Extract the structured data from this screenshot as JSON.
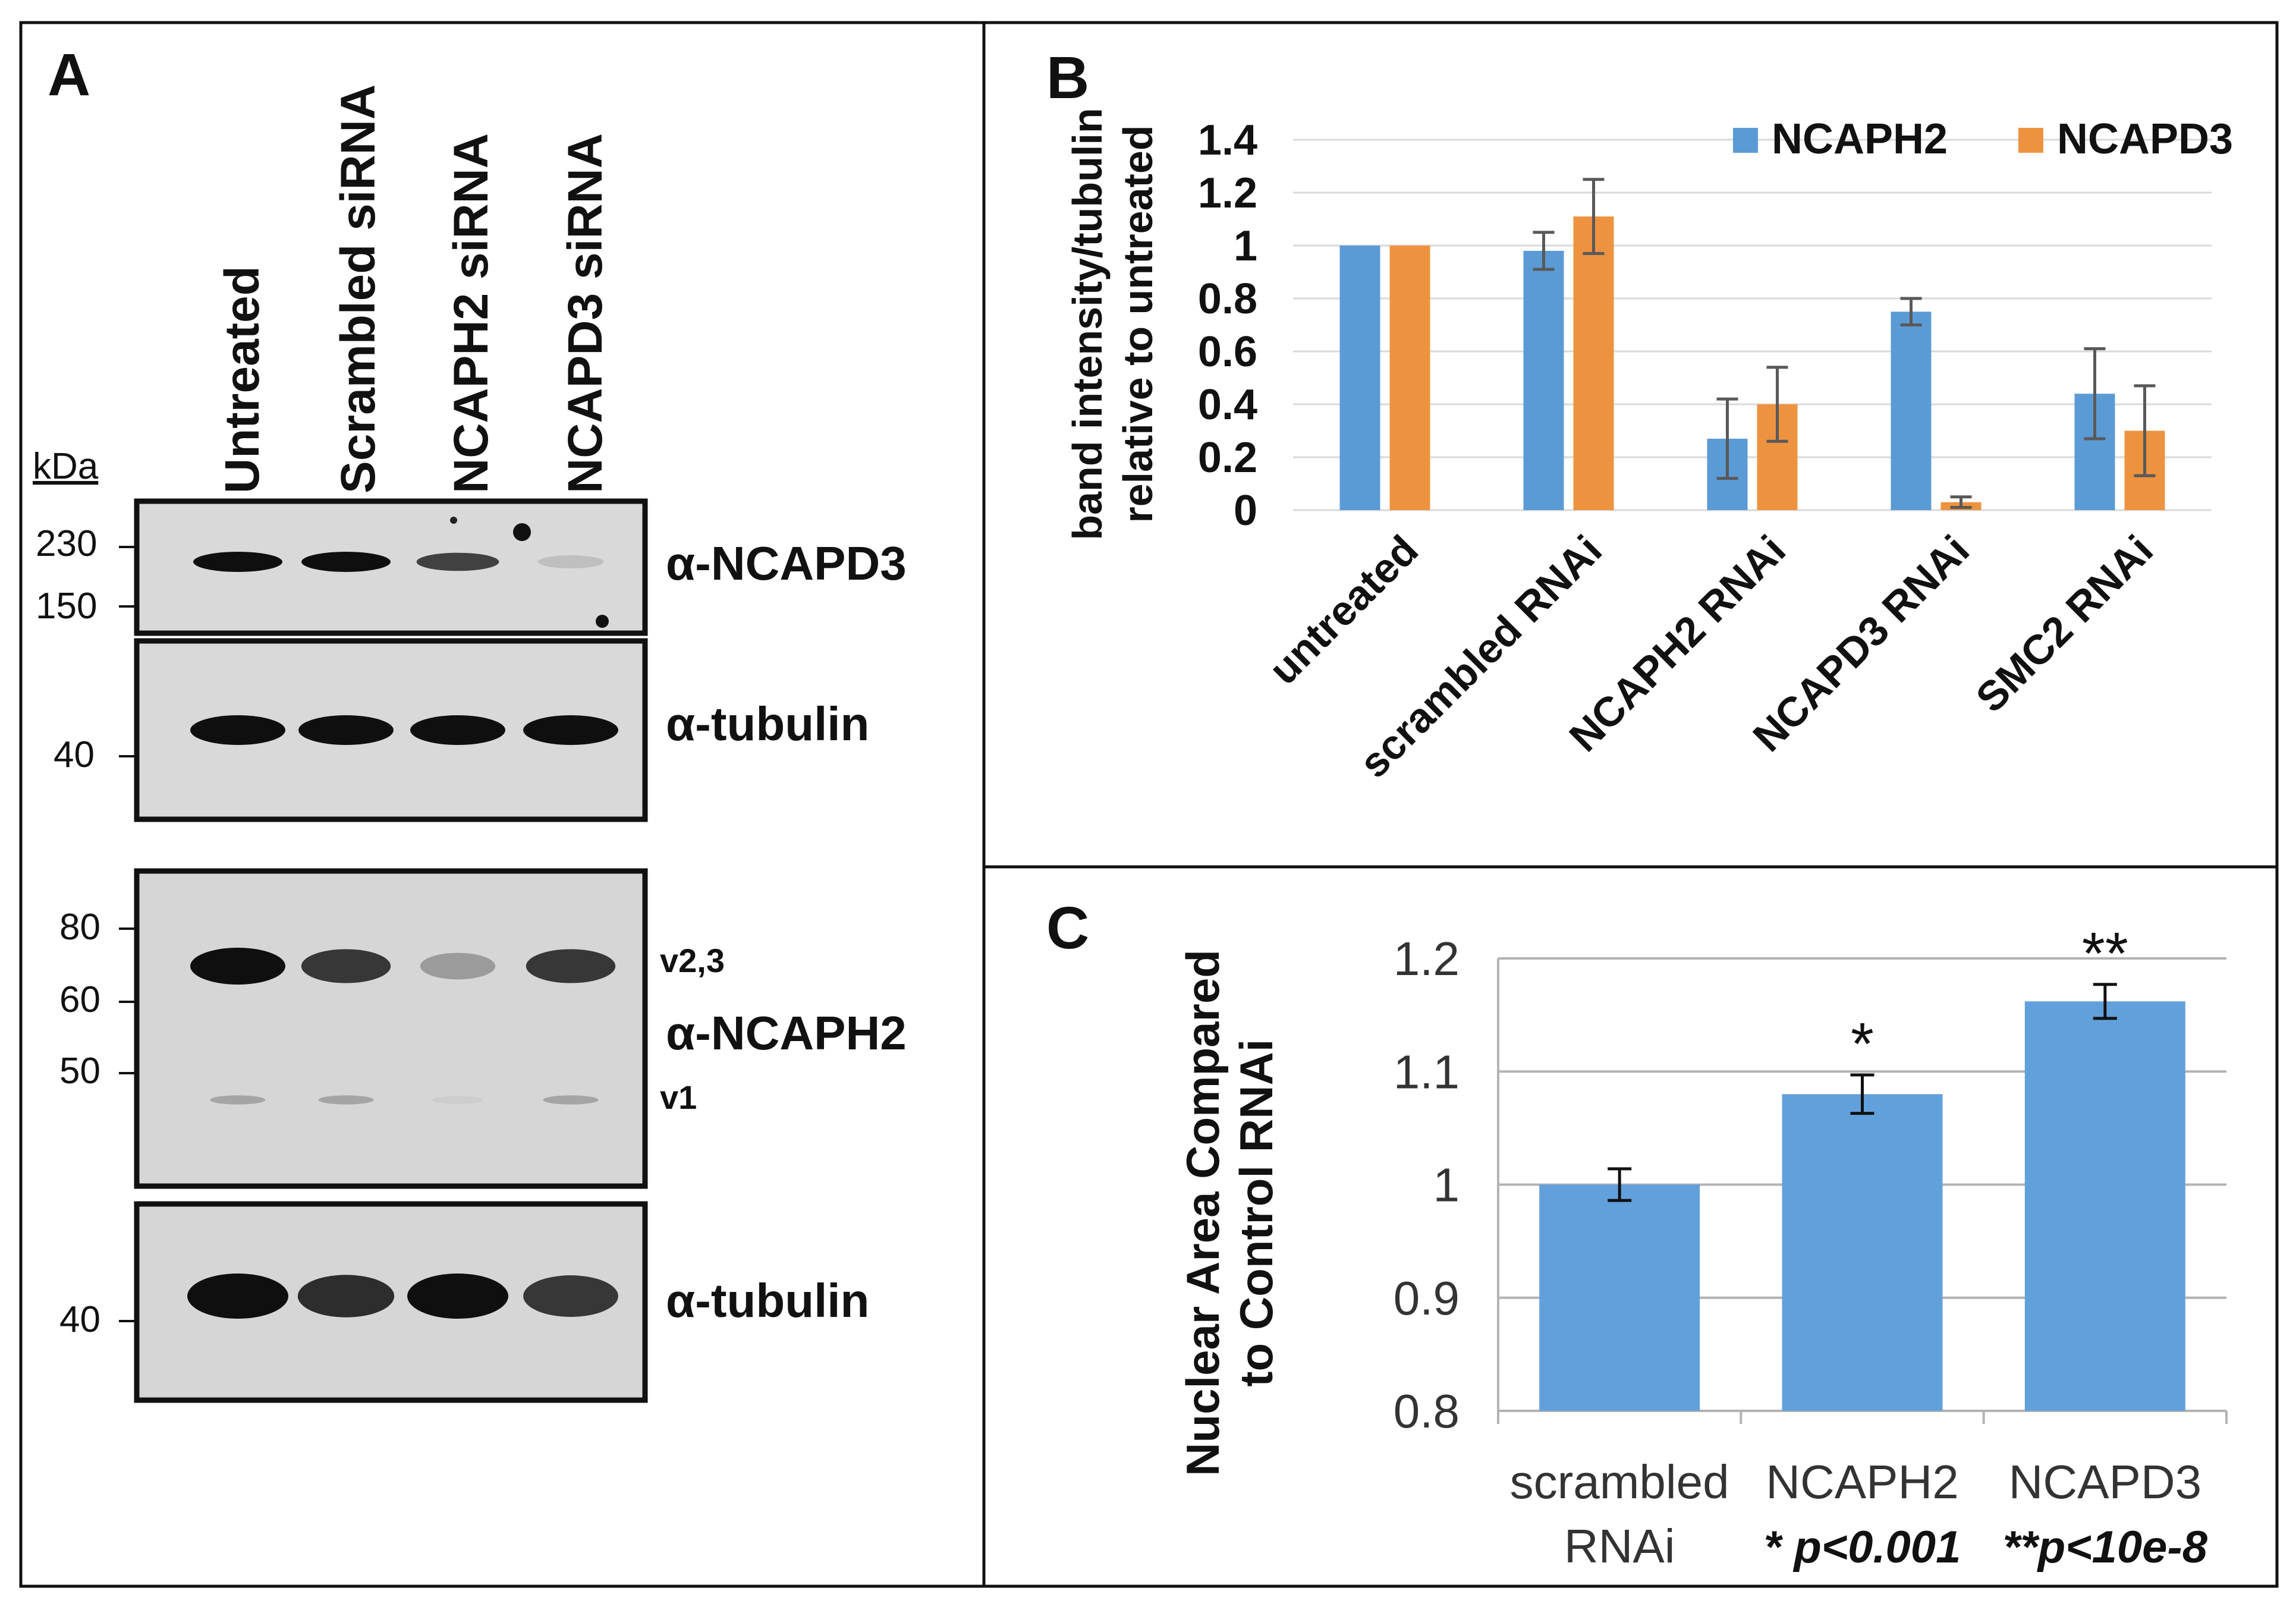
{
  "panels": {
    "a": {
      "label": "A",
      "lanes": [
        "Untreated",
        "Scrambled siRNA",
        "NCAPH2 siRNA",
        "NCAPD3 siRNA"
      ],
      "kda_label": "kDa",
      "blots": [
        {
          "antibody": "α-NCAPD3",
          "markers": [
            "230",
            "150"
          ],
          "band_intensity": [
            1.0,
            1.0,
            0.75,
            0.12
          ]
        },
        {
          "antibody": "α-tubulin",
          "markers": [
            "40"
          ],
          "band_intensity": [
            1.0,
            1.0,
            1.0,
            1.0
          ]
        },
        {
          "antibody": "α-NCAPH2",
          "markers": [
            "80",
            "60",
            "50"
          ],
          "variant_labels": [
            "v2,3",
            "v1"
          ],
          "band_intensity": [
            1.0,
            0.8,
            0.3,
            0.8
          ]
        },
        {
          "antibody": "α-tubulin",
          "markers": [
            "40"
          ],
          "band_intensity": [
            1.0,
            0.85,
            1.0,
            0.8
          ]
        }
      ]
    },
    "b": {
      "label": "B"
    },
    "c": {
      "label": "C"
    }
  },
  "chart_data": [
    {
      "panel": "B",
      "type": "bar",
      "categories": [
        "untreated",
        "scrambled RNAi",
        "NCAPH2 RNAi",
        "NCAPD3 RNAi",
        "SMC2 RNAi"
      ],
      "series": [
        {
          "name": "NCAPH2",
          "color": "#5b9bd5",
          "values": [
            1.0,
            0.98,
            0.27,
            0.75,
            0.44
          ],
          "errors": [
            0.0,
            0.07,
            0.15,
            0.05,
            0.17
          ]
        },
        {
          "name": "NCAPD3",
          "color": "#ed9340",
          "values": [
            1.0,
            1.11,
            0.4,
            0.03,
            0.3
          ],
          "errors": [
            0.0,
            0.14,
            0.14,
            0.02,
            0.17
          ]
        }
      ],
      "ylabel": [
        "band intensity/tubulin",
        "relative to untreated"
      ],
      "ylim": [
        0,
        1.4
      ],
      "yticks": [
        "0",
        "0.2",
        "0.4",
        "0.6",
        "0.8",
        "1",
        "1.2",
        "1.4"
      ],
      "grid": true,
      "legend": "top-right"
    },
    {
      "panel": "C",
      "type": "bar",
      "categories": [
        [
          "scrambled",
          "RNAi"
        ],
        [
          "NCAPH2",
          "* p<0.001"
        ],
        [
          "NCAPD3",
          "**p<10e-8"
        ]
      ],
      "series": [
        {
          "color": "#62a0db",
          "values": [
            1.0,
            1.08,
            1.162
          ],
          "errors": [
            0.014,
            0.017,
            0.015
          ]
        }
      ],
      "annotations": [
        "",
        "*",
        "**"
      ],
      "ylabel": [
        "Nuclear Area Compared",
        "to Control RNAi"
      ],
      "ylim": [
        0.8,
        1.2
      ],
      "yticks": [
        "0.8",
        "0.9",
        "1",
        "1.1",
        "1.2"
      ],
      "grid": true
    }
  ]
}
